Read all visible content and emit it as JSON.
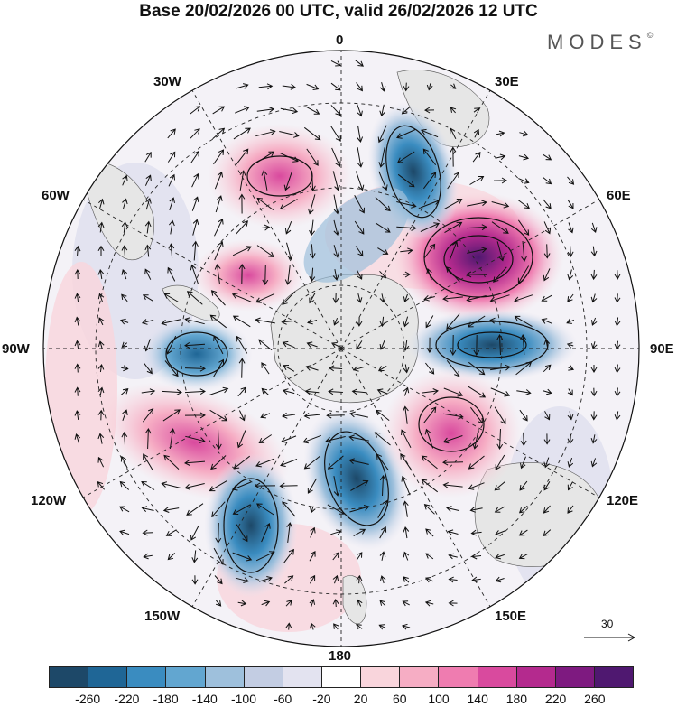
{
  "header": {
    "title": "Base 20/02/2026 00 UTC, valid 26/02/2026 12 UTC",
    "brand": "MODES"
  },
  "map": {
    "longitude_labels": {
      "n0": "0",
      "n30e": "30E",
      "n60e": "60E",
      "n90e": "90E",
      "n120e": "120E",
      "n150e": "150E",
      "n180": "180",
      "n150w": "150W",
      "n120w": "120W",
      "n90w": "90W",
      "n60w": "60W",
      "n30w": "30W"
    },
    "reference_vector_label": "30",
    "projection": "south polar stereographic",
    "anomaly_centres": [
      {
        "name": "positive-anomaly-60e",
        "lon": 55,
        "sign": "positive",
        "level": 260
      },
      {
        "name": "negative-anomaly-90e",
        "lon": 88,
        "sign": "negative",
        "level": -260
      },
      {
        "name": "negative-anomaly-20e",
        "lon": 20,
        "sign": "negative",
        "level": -260
      },
      {
        "name": "positive-anomaly-20w",
        "lon": -20,
        "sign": "positive",
        "level": 160
      },
      {
        "name": "negative-anomaly-90w",
        "lon": -92,
        "sign": "negative",
        "level": -220
      },
      {
        "name": "positive-anomaly-120w",
        "lon": -118,
        "sign": "positive",
        "level": 160
      },
      {
        "name": "negative-anomaly-150w",
        "lon": -150,
        "sign": "negative",
        "level": -220
      },
      {
        "name": "negative-anomaly-170e",
        "lon": 168,
        "sign": "negative",
        "level": -220
      },
      {
        "name": "positive-anomaly-130e",
        "lon": 128,
        "sign": "positive",
        "level": 140
      },
      {
        "name": "positive-anomaly-40w",
        "lon": -40,
        "sign": "positive",
        "level": 120
      }
    ]
  },
  "colorbar": {
    "labels": [
      "-260",
      "-220",
      "-180",
      "-140",
      "-100",
      "-60",
      "-20",
      "20",
      "60",
      "100",
      "140",
      "180",
      "220",
      "260"
    ],
    "colors": [
      "#1d4868",
      "#1f6696",
      "#3a8cc0",
      "#62a6d0",
      "#9ec0dc",
      "#c3cde3",
      "#e3e3f0",
      "#ffffff",
      "#f9d5dc",
      "#f6adc4",
      "#ef7cb0",
      "#d94a9e",
      "#b42a8e",
      "#7e1a80",
      "#4f1870"
    ]
  }
}
